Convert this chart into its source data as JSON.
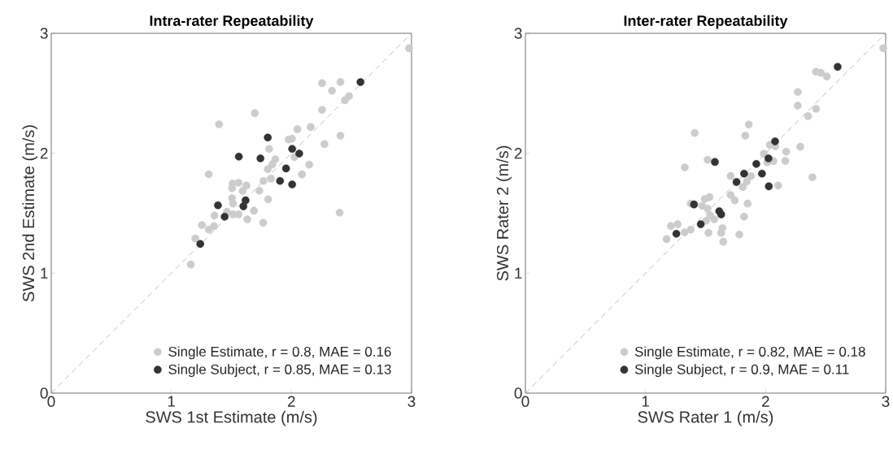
{
  "chart_data": [
    {
      "type": "scatter",
      "title": "Intra-rater Repeatability",
      "xlabel": "SWS 1st Estimate (m/s)",
      "ylabel": "SWS 2nd Estimate (m/s)",
      "xlim": [
        0,
        3
      ],
      "ylim": [
        0,
        3
      ],
      "xticks": [
        0,
        1,
        2,
        3
      ],
      "yticks": [
        0,
        1,
        2,
        3
      ],
      "legend": "bottom right",
      "marker": "circle",
      "series": [
        {
          "type": "line",
          "line_style": "dashed",
          "marker": "none",
          "color": "#b3b3b3",
          "x": [
            0,
            3
          ],
          "values": [
            0,
            3
          ]
        },
        {
          "name": "Single Estimate, r = 0.8, MAE = 0.16",
          "color": "#cccccc",
          "x": [
            2.255,
            2.408,
            2.338,
            2.479,
            2.446,
            1.695,
            2.255,
            1.397,
            2.049,
            2.16,
            2.408,
            2.275,
            1.977,
            2.004,
            1.814,
            2.025,
            1.866,
            1.841,
            1.803,
            2.148,
            2.088,
            1.311,
            1.83,
            1.767,
            1.51,
            1.56,
            1.625,
            1.506,
            1.594,
            1.733,
            1.806,
            1.506,
            1.514,
            1.688,
            1.463,
            1.514,
            1.56,
            1.359,
            1.632,
            1.765,
            1.255,
            1.311,
            1.356,
            1.2,
            2.401,
            1.162,
            2.98
          ],
          "values": [
            2.584,
            2.593,
            2.521,
            2.476,
            2.442,
            2.334,
            2.361,
            2.241,
            2.2,
            2.218,
            2.146,
            2.076,
            2.114,
            2.121,
            2.036,
            1.968,
            1.95,
            1.907,
            1.867,
            1.905,
            1.824,
            1.825,
            1.788,
            1.769,
            1.747,
            1.754,
            1.731,
            1.709,
            1.686,
            1.688,
            1.616,
            1.625,
            1.58,
            1.521,
            1.512,
            1.49,
            1.49,
            1.481,
            1.449,
            1.42,
            1.401,
            1.363,
            1.392,
            1.289,
            1.505,
            1.072,
            2.875
          ]
        },
        {
          "name": "Single Subject, r = 0.85, MAE = 0.13",
          "color": "#333333",
          "x": [
            2.575,
            1.803,
            1.562,
            1.742,
            2.006,
            2.065,
            1.955,
            1.905,
            2.006,
            1.618,
            1.6,
            1.388,
            1.444,
            1.241
          ],
          "values": [
            2.593,
            2.131,
            1.972,
            1.957,
            2.036,
            1.997,
            1.873,
            1.769,
            1.74,
            1.607,
            1.557,
            1.566,
            1.471,
            1.244
          ]
        }
      ]
    },
    {
      "type": "scatter",
      "title": "Inter-rater Repeatability",
      "xlabel": "SWS Rater 1 (m/s)",
      "ylabel": "SWS Rater 2 (m/s)",
      "xlim": [
        0,
        3
      ],
      "ylim": [
        0,
        3
      ],
      "xticks": [
        0,
        1,
        2,
        3
      ],
      "yticks": [
        0,
        1,
        2,
        3
      ],
      "legend": "bottom right",
      "marker": "circle",
      "series": [
        {
          "type": "line",
          "line_style": "dashed",
          "marker": "none",
          "color": "#b3b3b3",
          "x": [
            0,
            3
          ],
          "values": [
            0,
            3
          ]
        },
        {
          "name": "Single Estimate, r = 0.82, MAE = 0.18",
          "color": "#cccccc",
          "x": [
            2.268,
            2.268,
            2.354,
            1.86,
            1.831,
            1.41,
            2.289,
            2.171,
            2.164,
            2.036,
            2.081,
            1.986,
            2.065,
            2.013,
            1.517,
            1.327,
            1.709,
            1.878,
            1.844,
            1.81,
            2.104,
            1.709,
            1.743,
            1.85,
            1.377,
            1.494,
            1.533,
            1.472,
            1.517,
            1.539,
            1.573,
            1.506,
            1.821,
            1.268,
            1.212,
            1.325,
            1.377,
            1.524,
            1.641,
            1.63,
            1.781,
            1.176,
            1.648,
            2.39,
            2.42,
            2.46,
            2.51,
            2.42,
            2.98
          ],
          "values": [
            2.51,
            2.397,
            2.309,
            2.239,
            2.146,
            2.169,
            2.054,
            2.013,
            1.936,
            2.069,
            2.058,
            1.995,
            1.934,
            1.923,
            1.945,
            1.882,
            1.81,
            1.81,
            1.765,
            1.719,
            1.731,
            1.652,
            1.607,
            1.58,
            1.58,
            1.618,
            1.634,
            1.561,
            1.539,
            1.483,
            1.449,
            1.438,
            1.471,
            1.408,
            1.393,
            1.34,
            1.363,
            1.336,
            1.376,
            1.336,
            1.322,
            1.284,
            1.262,
            1.799,
            2.68,
            2.67,
            2.64,
            2.37,
            2.875
          ]
        },
        {
          "name": "Single Subject, r = 0.9, MAE = 0.11",
          "color": "#333333",
          "x": [
            2.6,
            2.079,
            2.024,
            1.923,
            1.97,
            1.821,
            1.758,
            2.027,
            1.578,
            1.404,
            1.614,
            1.63,
            1.46,
            1.257
          ],
          "values": [
            2.72,
            2.099,
            1.957,
            1.911,
            1.83,
            1.83,
            1.76,
            1.724,
            1.927,
            1.573,
            1.517,
            1.49,
            1.408,
            1.329
          ]
        }
      ]
    }
  ]
}
